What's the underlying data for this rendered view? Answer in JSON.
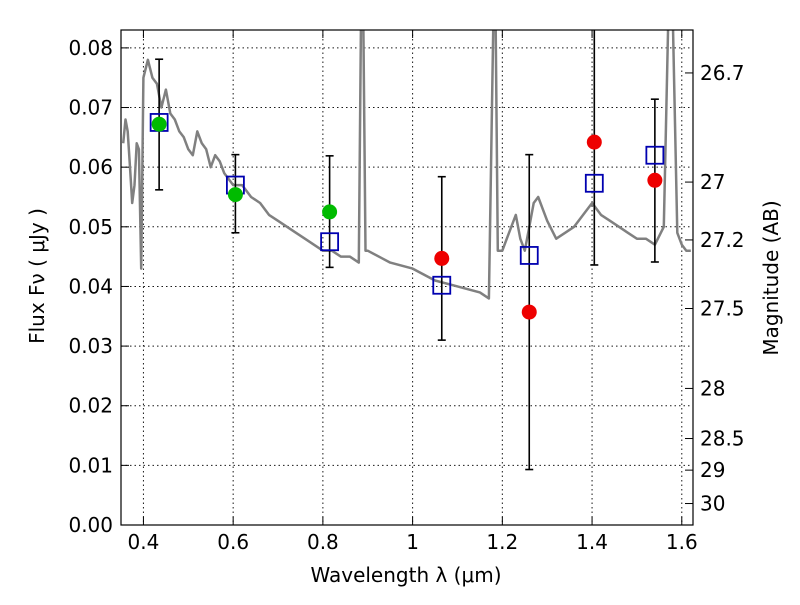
{
  "chart_data": {
    "type": "scatter",
    "title": "",
    "xlabel": "Wavelength  λ (μm)",
    "ylabel": "Flux  Fν  ( μJy )",
    "y2label": "Magnitude (AB)",
    "xlim": [
      0.35,
      1.625
    ],
    "ylim": [
      0.0,
      0.083
    ],
    "grid": true,
    "x_ticks": [
      0.4,
      0.6,
      0.8,
      1.0,
      1.2,
      1.4,
      1.6
    ],
    "x_tick_labels": [
      "0.4",
      "0.6",
      "0.8",
      "1",
      "1.2",
      "1.4",
      "1.6"
    ],
    "y_ticks": [
      0.0,
      0.01,
      0.02,
      0.03,
      0.04,
      0.05,
      0.06,
      0.07,
      0.08
    ],
    "y_tick_labels": [
      "0.00",
      "0.01",
      "0.02",
      "0.03",
      "0.04",
      "0.05",
      "0.06",
      "0.07",
      "0.08"
    ],
    "y2_ticks": [
      {
        "label": "26.7",
        "flux": 0.0758
      },
      {
        "label": "27",
        "flux": 0.0575
      },
      {
        "label": "27.2",
        "flux": 0.0478
      },
      {
        "label": "27.5",
        "flux": 0.0363
      },
      {
        "label": "28",
        "flux": 0.0229
      },
      {
        "label": "28.5",
        "flux": 0.0145
      },
      {
        "label": "29",
        "flux": 0.0092
      },
      {
        "label": "30",
        "flux": 0.0036
      }
    ],
    "series": [
      {
        "marker": "line",
        "color": "#808080",
        "x": [
          0.355,
          0.36,
          0.365,
          0.37,
          0.375,
          0.38,
          0.385,
          0.39,
          0.395,
          0.4,
          0.41,
          0.42,
          0.43,
          0.44,
          0.45,
          0.46,
          0.47,
          0.48,
          0.49,
          0.5,
          0.51,
          0.52,
          0.53,
          0.54,
          0.55,
          0.56,
          0.57,
          0.58,
          0.59,
          0.6,
          0.62,
          0.64,
          0.66,
          0.68,
          0.7,
          0.72,
          0.74,
          0.76,
          0.78,
          0.8,
          0.82,
          0.84,
          0.86,
          0.88,
          0.885,
          0.89,
          0.895,
          0.9,
          0.95,
          1.0,
          1.05,
          1.1,
          1.15,
          1.17,
          1.18,
          1.185,
          1.19,
          1.195,
          1.2,
          1.21,
          1.22,
          1.23,
          1.24,
          1.25,
          1.26,
          1.27,
          1.28,
          1.29,
          1.3,
          1.32,
          1.34,
          1.36,
          1.38,
          1.4,
          1.42,
          1.44,
          1.46,
          1.48,
          1.5,
          1.52,
          1.54,
          1.56,
          1.57,
          1.58,
          1.59,
          1.6,
          1.61,
          1.62
        ],
        "y": [
          0.064,
          0.068,
          0.066,
          0.06,
          0.054,
          0.057,
          0.064,
          0.063,
          0.043,
          0.075,
          0.078,
          0.075,
          0.074,
          0.07,
          0.073,
          0.069,
          0.068,
          0.066,
          0.065,
          0.063,
          0.062,
          0.066,
          0.064,
          0.063,
          0.06,
          0.062,
          0.061,
          0.059,
          0.058,
          0.057,
          0.057,
          0.055,
          0.054,
          0.052,
          0.051,
          0.05,
          0.049,
          0.048,
          0.047,
          0.046,
          0.046,
          0.045,
          0.045,
          0.044,
          0.085,
          0.085,
          0.046,
          0.046,
          0.044,
          0.043,
          0.041,
          0.04,
          0.039,
          0.038,
          0.085,
          0.085,
          0.046,
          0.046,
          0.046,
          0.048,
          0.05,
          0.052,
          0.048,
          0.046,
          0.05,
          0.054,
          0.055,
          0.053,
          0.051,
          0.048,
          0.049,
          0.05,
          0.052,
          0.054,
          0.052,
          0.051,
          0.05,
          0.049,
          0.048,
          0.048,
          0.047,
          0.05,
          0.085,
          0.085,
          0.049,
          0.047,
          0.046,
          0.046
        ]
      },
      {
        "marker": "open-square",
        "color": "#0000b0",
        "x": [
          0.435,
          0.605,
          0.815,
          1.065,
          1.26,
          1.405,
          1.54
        ],
        "y": [
          0.0675,
          0.057,
          0.0475,
          0.0402,
          0.0452,
          0.0573,
          0.062
        ]
      },
      {
        "marker": "filled-circle",
        "color": "#00bb00",
        "x": [
          0.435,
          0.605,
          0.815
        ],
        "y": [
          0.0672,
          0.0554,
          0.0525
        ]
      },
      {
        "marker": "filled-circle",
        "color": "#ee0000",
        "x": [
          1.065,
          1.26,
          1.405,
          1.54
        ],
        "y": [
          0.0447,
          0.0357,
          0.0642,
          0.0578
        ]
      }
    ],
    "error_bars": [
      {
        "x": 0.435,
        "low": 0.0562,
        "high": 0.0781
      },
      {
        "x": 0.605,
        "low": 0.049,
        "high": 0.0621
      },
      {
        "x": 0.815,
        "low": 0.0432,
        "high": 0.0619
      },
      {
        "x": 1.065,
        "low": 0.031,
        "high": 0.0584
      },
      {
        "x": 1.26,
        "low": 0.0093,
        "high": 0.0621
      },
      {
        "x": 1.405,
        "low": 0.0436,
        "high": 0.085
      },
      {
        "x": 1.54,
        "low": 0.0441,
        "high": 0.0714
      }
    ]
  }
}
